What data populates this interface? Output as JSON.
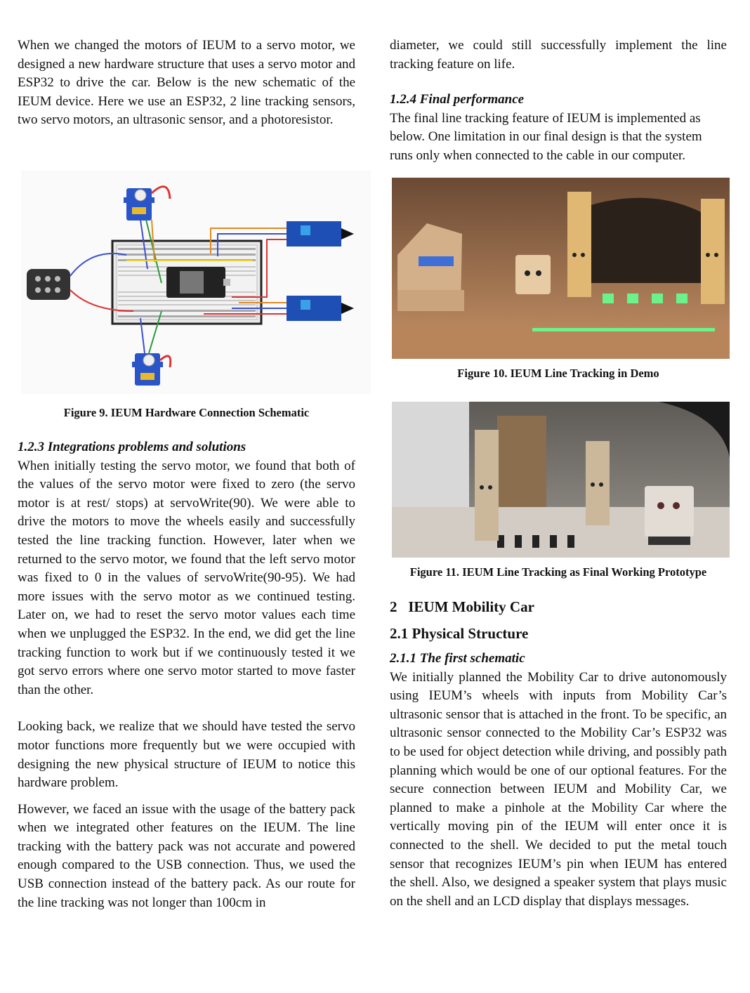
{
  "left": {
    "intro": "When we changed the motors of IEUM to a servo motor, we designed a new hardware structure that uses a servo motor and ESP32 to drive the car. Below is the new schematic of the IEUM device. Here we use an ESP32, 2 line tracking sensors, two servo motors, an ultrasonic sensor, and a photoresistor.",
    "figure9_caption": "Figure 9. IEUM Hardware Connection Schematic",
    "section_123_title": "1.2.3  Integrations problems and solutions",
    "p1": "When initially testing the servo motor, we found that both of the values of the servo motor were fixed to zero (the servo motor is at rest/ stops) at servoWrite(90). We were able to drive the motors to move the wheels easily and successfully tested the line tracking function. However, later when we returned to the servo motor, we found that the left servo motor was fixed to 0 in the values of servoWrite(90-95). We had more issues with the servo motor as we continued testing. Later on, we had to reset the servo motor values each time when we unplugged the ESP32. In the end, we did get the line tracking function to work but if we continuously tested it we got servo errors where one servo motor started to move faster than the other.",
    "p2": "Looking back, we realize that we should have tested the servo motor functions more frequently but we were occupied with designing the new physical structure of IEUM to notice this hardware problem.",
    "p3": "However, we faced an issue with the usage of the battery pack when we integrated other features on the IEUM. The line tracking with the battery pack was not accurate and powered enough compared to the USB connection. Thus, we used the USB connection instead of the battery pack. As our route for the line tracking was not longer than 100cm in"
  },
  "right": {
    "p_cont": "diameter, we could still successfully implement the line tracking feature on life.",
    "section_124_title": "1.2.4 Final performance",
    "p_final": "The final line tracking feature of IEUM is implemented as below. One limitation in our final design is that the system runs only when connected to the cable in our computer.",
    "figure10_caption": "Figure 10. IEUM Line Tracking in Demo",
    "figure11_caption": "Figure 11. IEUM Line Tracking as Final Working Prototype",
    "section_2_number": "2",
    "section_2_title": "IEUM Mobility Car",
    "section_21_title": "2.1 Physical Structure",
    "section_211_title": "2.1.1  The first schematic",
    "p_211": "We initially planned the Mobility Car to drive autonomously using IEUM’s wheels with inputs from Mobility Car’s ultrasonic sensor that is attached in the front. To be specific, an ultrasonic sensor connected to the Mobility Car’s ESP32 was to be used for object detection while driving, and possibly path planning which would be one of our optional features. For the secure connection between IEUM and Mobility Car, we planned to make a pinhole at the Mobility Car where the vertically moving pin of the IEUM will enter once it is connected to the shell. We decided to put the metal touch sensor that recognizes IEUM’s pin when IEUM has entered the shell. Also, we designed a speaker system that plays music on the shell and an LCD display that displays messages."
  }
}
